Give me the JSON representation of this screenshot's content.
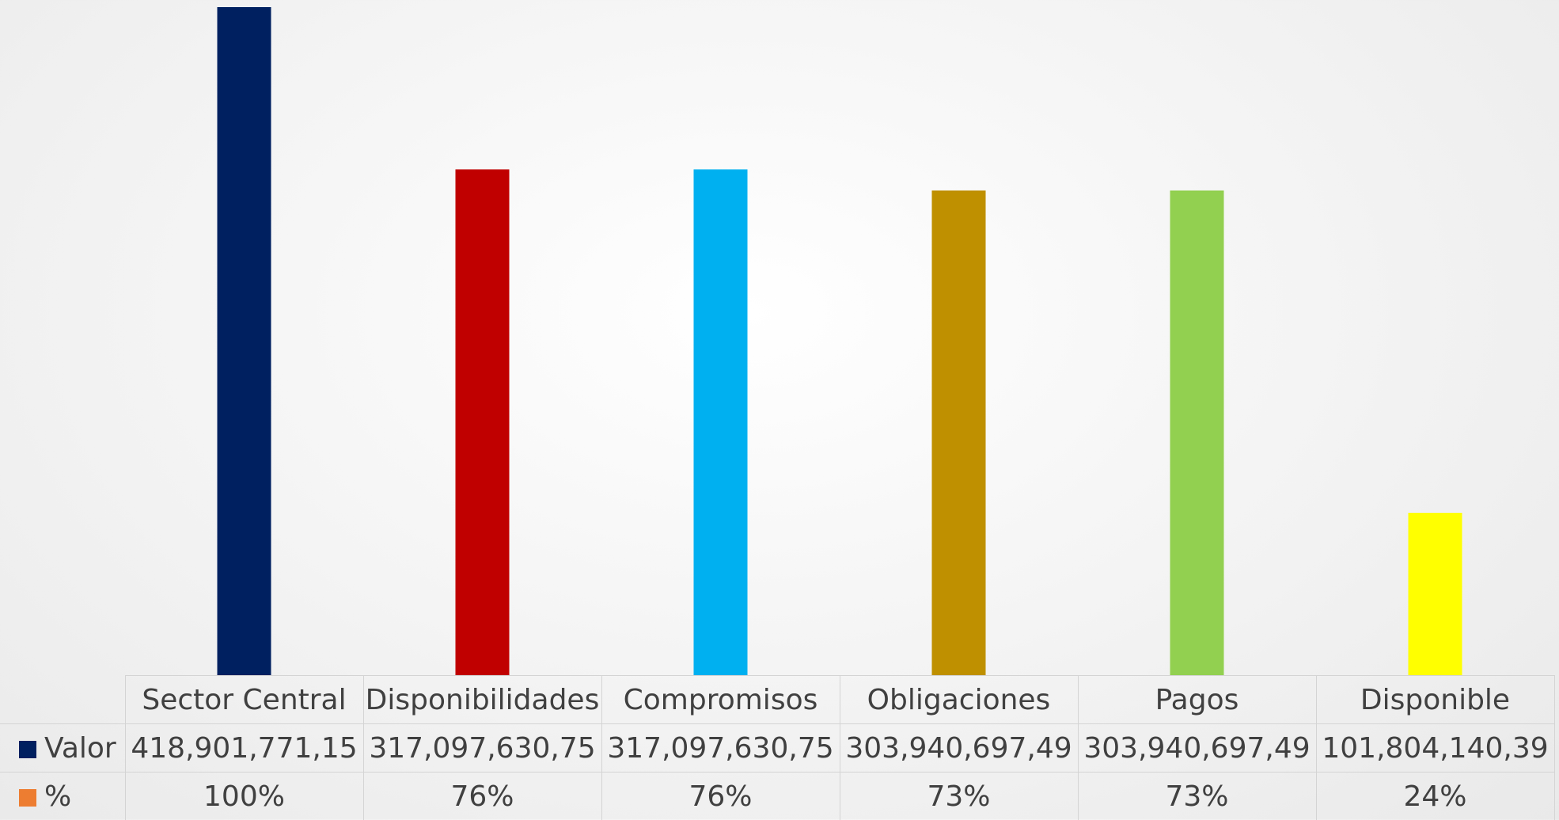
{
  "chart_data": {
    "type": "bar",
    "categories": [
      "Sector Central",
      "Disponibilidades",
      "Compromisos",
      "Obligaciones",
      "Pagos",
      "Disponible"
    ],
    "series": [
      {
        "name": "Valor",
        "values": [
          418901771.15,
          317097630.75,
          317097630.75,
          303940697.49,
          303940697.49,
          101804140.39
        ],
        "labels": [
          "418,901,771,15",
          "317,097,630,75",
          "317,097,630,75",
          "303,940,697,49",
          "303,940,697,49",
          "101,804,140,39"
        ],
        "legend_color": "#002060"
      },
      {
        "name": "%",
        "values": [
          100,
          76,
          76,
          73,
          73,
          24
        ],
        "labels": [
          "100%",
          "76%",
          "76%",
          "73%",
          "73%",
          "24%"
        ],
        "legend_color": "#ED7D31"
      }
    ],
    "bar_colors": [
      "#002060",
      "#C00000",
      "#00B0F0",
      "#BF9000",
      "#92D050",
      "#FFFF00"
    ],
    "ylim": [
      0,
      418901771.15
    ],
    "grid": false,
    "legend": "data table"
  }
}
